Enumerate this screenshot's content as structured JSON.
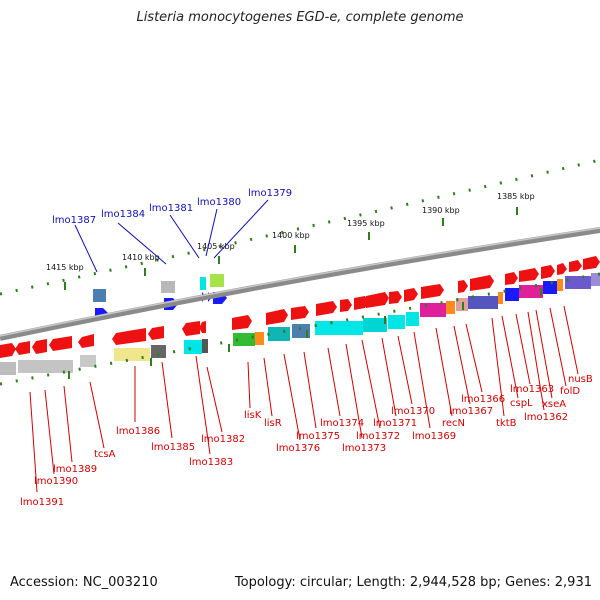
{
  "title": "Listeria monocytogenes EGD-e, complete genome",
  "footer": {
    "accession": "Accession: NC_003210",
    "topology": "Topology: circular; Length: 2,944,528 bp; Genes: 2,931"
  },
  "colors": {
    "ruler": "#2e7d1e",
    "label_upper": "#1010b0",
    "label_lower": "#d00000",
    "backbone": "#7a7a7a"
  },
  "ruler_labels": [
    "1415 kbp",
    "1410 kbp",
    "1405 kbp",
    "1400 kbp",
    "1395 kbp",
    "1390 kbp",
    "1385 kbp"
  ],
  "upper_labels": [
    "lmo1387",
    "lmo1384",
    "lmo1381",
    "lmo1380",
    "lmo1379"
  ],
  "lower_labels": [
    "lmo1391",
    "lmo1390",
    "lmo1389",
    "tcsA",
    "lmo1386",
    "lmo1385",
    "lmo1383",
    "lmo1382",
    "lisK",
    "lisR",
    "lmo1376",
    "lmo1375",
    "lmo1374",
    "lmo1373",
    "lmo1372",
    "lmo1371",
    "lmo1370",
    "lmo1369",
    "recN",
    "lmo1367",
    "lmo1366",
    "tktB",
    "cspL",
    "lmo1363",
    "lmo1362",
    "xseA",
    "folD",
    "nusB"
  ]
}
